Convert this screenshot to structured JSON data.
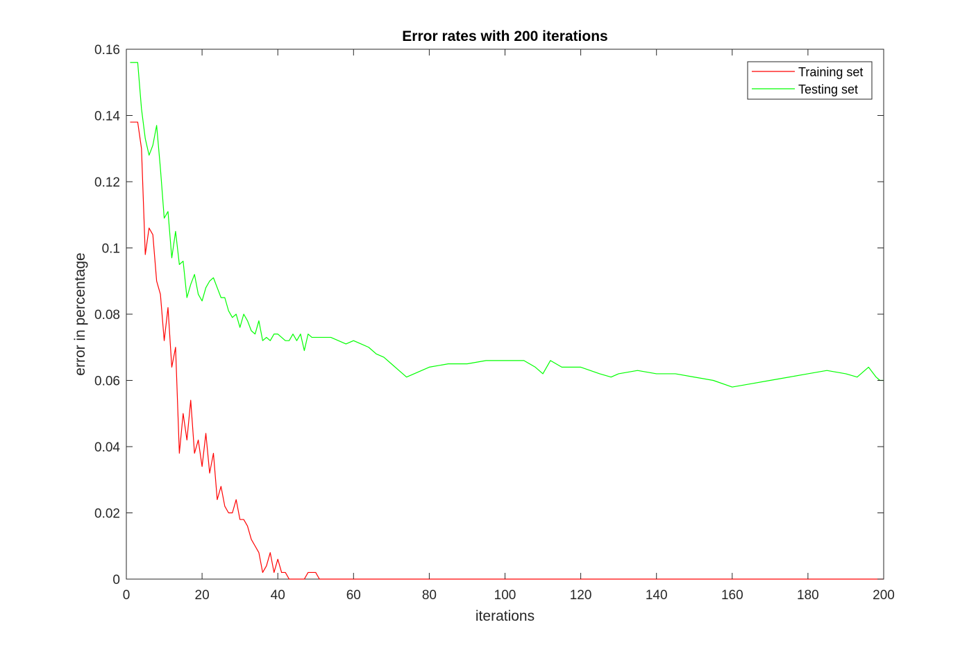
{
  "chart_data": {
    "type": "line",
    "title": "Error rates with 200 iterations",
    "xlabel": "iterations",
    "ylabel": "error in percentage",
    "xlim": [
      0,
      200
    ],
    "ylim": [
      0,
      0.16
    ],
    "x_ticks": [
      "0",
      "20",
      "40",
      "60",
      "80",
      "100",
      "120",
      "140",
      "160",
      "180",
      "200"
    ],
    "y_ticks": [
      "0",
      "0.02",
      "0.04",
      "0.06",
      "0.08",
      "0.1",
      "0.12",
      "0.14",
      "0.16"
    ],
    "grid": false,
    "legend_position": "top-right",
    "series": [
      {
        "name": "Training set",
        "color": "#ff0000",
        "x": [
          1,
          3,
          4,
          5,
          6,
          7,
          8,
          9,
          10,
          11,
          12,
          13,
          14,
          15,
          16,
          17,
          18,
          19,
          20,
          21,
          22,
          23,
          24,
          25,
          26,
          27,
          28,
          29,
          30,
          31,
          32,
          33,
          34,
          35,
          36,
          37,
          38,
          39,
          40,
          41,
          42,
          43,
          44,
          45,
          46,
          47,
          48,
          49,
          50,
          51,
          52,
          200
        ],
        "y": [
          0.138,
          0.138,
          0.13,
          0.098,
          0.106,
          0.104,
          0.09,
          0.086,
          0.072,
          0.082,
          0.064,
          0.07,
          0.038,
          0.05,
          0.042,
          0.054,
          0.038,
          0.042,
          0.034,
          0.044,
          0.032,
          0.038,
          0.024,
          0.028,
          0.022,
          0.02,
          0.02,
          0.024,
          0.018,
          0.018,
          0.016,
          0.012,
          0.01,
          0.008,
          0.002,
          0.004,
          0.008,
          0.002,
          0.006,
          0.002,
          0.002,
          0,
          0,
          0,
          0,
          0,
          0.002,
          0.002,
          0.002,
          0,
          0,
          0
        ]
      },
      {
        "name": "Testing set",
        "color": "#00ff00",
        "x": [
          1,
          3,
          4,
          5,
          6,
          7,
          8,
          9,
          10,
          11,
          12,
          13,
          14,
          15,
          16,
          17,
          18,
          19,
          20,
          21,
          22,
          23,
          24,
          25,
          26,
          27,
          28,
          29,
          30,
          31,
          32,
          33,
          34,
          35,
          36,
          37,
          38,
          39,
          40,
          41,
          42,
          43,
          44,
          45,
          46,
          47,
          48,
          49,
          50,
          52,
          54,
          56,
          58,
          60,
          62,
          64,
          66,
          68,
          70,
          72,
          74,
          76,
          78,
          80,
          85,
          90,
          95,
          100,
          105,
          108,
          110,
          112,
          115,
          120,
          125,
          128,
          130,
          135,
          140,
          145,
          150,
          155,
          160,
          165,
          170,
          175,
          180,
          185,
          190,
          193,
          196,
          198,
          199,
          200
        ],
        "y": [
          0.156,
          0.156,
          0.142,
          0.133,
          0.128,
          0.131,
          0.137,
          0.124,
          0.109,
          0.111,
          0.097,
          0.105,
          0.095,
          0.096,
          0.085,
          0.089,
          0.092,
          0.086,
          0.084,
          0.088,
          0.09,
          0.091,
          0.088,
          0.085,
          0.085,
          0.081,
          0.079,
          0.08,
          0.076,
          0.08,
          0.078,
          0.075,
          0.074,
          0.078,
          0.072,
          0.073,
          0.072,
          0.074,
          0.074,
          0.073,
          0.072,
          0.072,
          0.074,
          0.072,
          0.074,
          0.069,
          0.074,
          0.073,
          0.073,
          0.073,
          0.073,
          0.072,
          0.071,
          0.072,
          0.071,
          0.07,
          0.068,
          0.067,
          0.065,
          0.063,
          0.061,
          0.062,
          0.063,
          0.064,
          0.065,
          0.065,
          0.066,
          0.066,
          0.066,
          0.064,
          0.062,
          0.066,
          0.064,
          0.064,
          0.062,
          0.061,
          0.062,
          0.063,
          0.062,
          0.062,
          0.061,
          0.06,
          0.058,
          0.059,
          0.06,
          0.061,
          0.062,
          0.063,
          0.062,
          0.061,
          0.064,
          0.061,
          0.06,
          0.06
        ]
      }
    ]
  }
}
